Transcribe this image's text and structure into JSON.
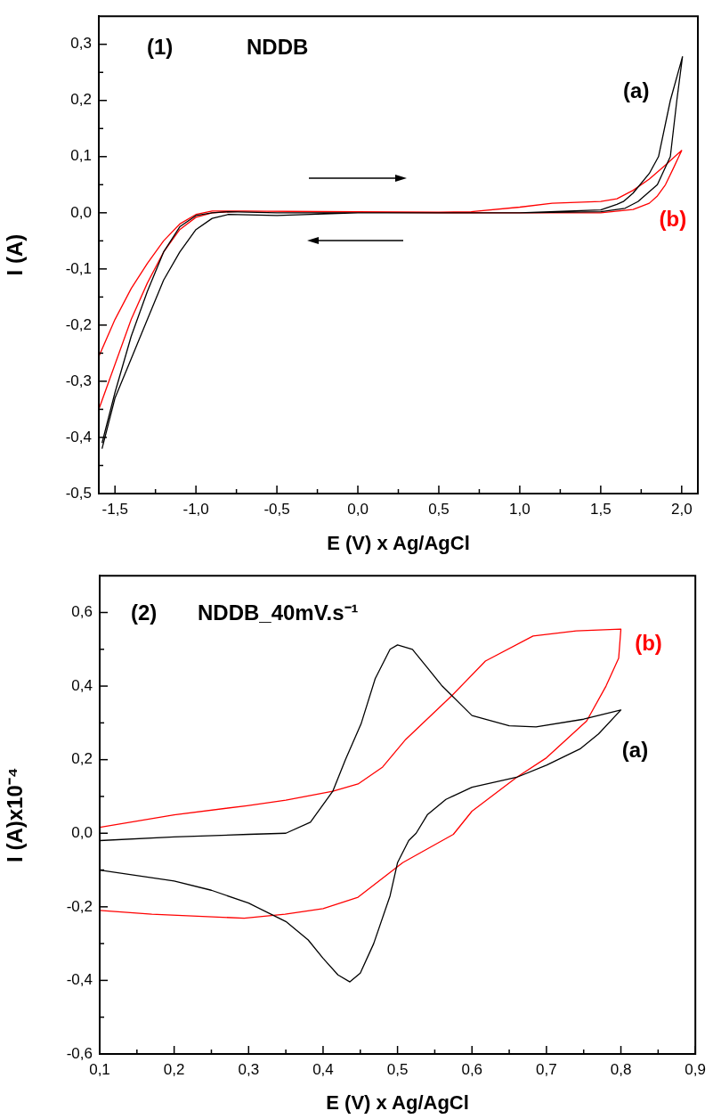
{
  "chart_data": [
    {
      "type": "line",
      "xlabel": "E (V) x Ag/AgCl",
      "ylabel": "I (A)",
      "annotations": [
        "(1)",
        "NDDB"
      ],
      "legend": false,
      "marker": "none",
      "line_style": "solid",
      "xlim": [
        -1.6,
        2.1
      ],
      "ylim": [
        -0.5,
        0.35
      ],
      "xticks": [
        {
          "value": -1.5,
          "label": "-1,5"
        },
        {
          "value": -1.25,
          "label": null
        },
        {
          "value": -1.0,
          "label": "-1,0"
        },
        {
          "value": -0.75,
          "label": null
        },
        {
          "value": -0.5,
          "label": "-0,5"
        },
        {
          "value": -0.25,
          "label": null
        },
        {
          "value": 0,
          "label": "0,0"
        },
        {
          "value": 0.25,
          "label": null
        },
        {
          "value": 0.5,
          "label": "0,5"
        },
        {
          "value": 0.75,
          "label": null
        },
        {
          "value": 1.0,
          "label": "1,0"
        },
        {
          "value": 1.25,
          "label": null
        },
        {
          "value": 1.5,
          "label": "1,5"
        },
        {
          "value": 1.75,
          "label": null
        },
        {
          "value": 2.0,
          "label": "2,0"
        }
      ],
      "yticks": [
        {
          "value": -0.5,
          "label": "-0,5"
        },
        {
          "value": -0.45,
          "label": null
        },
        {
          "value": -0.4,
          "label": "-0,4"
        },
        {
          "value": -0.35,
          "label": null
        },
        {
          "value": -0.3,
          "label": "-0,3"
        },
        {
          "value": -0.25,
          "label": null
        },
        {
          "value": -0.2,
          "label": "-0,2"
        },
        {
          "value": -0.15,
          "label": null
        },
        {
          "value": -0.1,
          "label": "-0,1"
        },
        {
          "value": -0.05,
          "label": null
        },
        {
          "value": 0,
          "label": "0,0"
        },
        {
          "value": 0.05,
          "label": null
        },
        {
          "value": 0.1,
          "label": "0,1"
        },
        {
          "value": 0.15,
          "label": null
        },
        {
          "value": 0.2,
          "label": "0,2"
        },
        {
          "value": 0.25,
          "label": null
        },
        {
          "value": 0.3,
          "label": "0,3"
        }
      ],
      "series": [
        {
          "name": "(a)",
          "color": "#000000",
          "x": [
            -1.58,
            -1.5,
            -1.4,
            -1.3,
            -1.2,
            -1.1,
            -1.0,
            -0.9,
            -0.8,
            -0.5,
            0,
            0.5,
            1.0,
            1.3,
            1.5,
            1.6,
            1.64,
            1.7,
            1.8,
            1.857,
            1.93,
            2.005,
            1.97,
            1.93,
            1.85,
            1.73,
            1.65,
            1.5,
            1.0,
            0.5,
            0,
            -0.5,
            -0.8,
            -0.9,
            -1.0,
            -1.1,
            -1.2,
            -1.3,
            -1.4,
            -1.5,
            -1.58
          ],
          "values": [
            -0.41,
            -0.32,
            -0.22,
            -0.14,
            -0.07,
            -0.025,
            -0.005,
            0.0,
            0.002,
            0.0,
            0.0,
            0.0,
            0.0,
            0.003,
            0.005,
            0.015,
            0.02,
            0.035,
            0.07,
            0.1,
            0.2,
            0.278,
            0.2,
            0.1,
            0.05,
            0.02,
            0.008,
            0.002,
            0.0,
            0.0,
            0.0,
            -0.005,
            -0.003,
            -0.01,
            -0.03,
            -0.07,
            -0.12,
            -0.19,
            -0.26,
            -0.33,
            -0.42
          ]
        },
        {
          "name": "(b)",
          "color": "#ff0000",
          "x": [
            -1.6,
            -1.5,
            -1.4,
            -1.3,
            -1.2,
            -1.1,
            -1.0,
            -0.9,
            -0.7,
            0,
            0.5,
            0.7,
            1.0,
            1.2,
            1.5,
            1.6,
            1.7,
            1.8,
            1.9,
            2.0,
            1.95,
            1.9,
            1.85,
            1.8,
            1.7,
            1.5,
            1.0,
            0.5,
            0,
            -0.7,
            -0.9,
            -1.0,
            -1.1,
            -1.2,
            -1.3,
            -1.4,
            -1.5,
            -1.6
          ],
          "values": [
            -0.35,
            -0.27,
            -0.19,
            -0.125,
            -0.07,
            -0.03,
            -0.008,
            0.0,
            0.003,
            0.002,
            0.001,
            0.002,
            0.01,
            0.017,
            0.02,
            0.025,
            0.04,
            0.06,
            0.085,
            0.111,
            0.08,
            0.05,
            0.03,
            0.017,
            0.006,
            0.0,
            0.0,
            0.0,
            0.001,
            0.003,
            0.003,
            -0.003,
            -0.02,
            -0.05,
            -0.09,
            -0.135,
            -0.19,
            -0.256
          ]
        }
      ]
    },
    {
      "type": "line",
      "xlabel": "E (V) x Ag/AgCl",
      "ylabel": "I (A)x10⁻⁴",
      "annotations": [
        "(2)",
        "NDDB_40mV.s⁻¹"
      ],
      "legend": false,
      "marker": "none",
      "line_style": "solid",
      "xlim": [
        0.1,
        0.9
      ],
      "ylim": [
        -0.6,
        0.7
      ],
      "xticks": [
        {
          "value": 0.1,
          "label": "0,1"
        },
        {
          "value": 0.15,
          "label": null
        },
        {
          "value": 0.2,
          "label": "0,2"
        },
        {
          "value": 0.25,
          "label": null
        },
        {
          "value": 0.3,
          "label": "0,3"
        },
        {
          "value": 0.35,
          "label": null
        },
        {
          "value": 0.4,
          "label": "0,4"
        },
        {
          "value": 0.45,
          "label": null
        },
        {
          "value": 0.5,
          "label": "0,5"
        },
        {
          "value": 0.55,
          "label": null
        },
        {
          "value": 0.6,
          "label": "0,6"
        },
        {
          "value": 0.65,
          "label": null
        },
        {
          "value": 0.7,
          "label": "0,7"
        },
        {
          "value": 0.75,
          "label": null
        },
        {
          "value": 0.8,
          "label": "0,8"
        },
        {
          "value": 0.85,
          "label": null
        },
        {
          "value": 0.9,
          "label": "0,9"
        }
      ],
      "yticks": [
        {
          "value": -0.6,
          "label": "-0,6"
        },
        {
          "value": -0.5,
          "label": null
        },
        {
          "value": -0.4,
          "label": "-0,4"
        },
        {
          "value": -0.3,
          "label": null
        },
        {
          "value": -0.2,
          "label": "-0,2"
        },
        {
          "value": -0.1,
          "label": null
        },
        {
          "value": 0,
          "label": "0,0"
        },
        {
          "value": 0.1,
          "label": null
        },
        {
          "value": 0.2,
          "label": "0,2"
        },
        {
          "value": 0.3,
          "label": null
        },
        {
          "value": 0.4,
          "label": "0,4"
        },
        {
          "value": 0.5,
          "label": null
        },
        {
          "value": 0.6,
          "label": "0,6"
        }
      ],
      "series": [
        {
          "name": "(a)",
          "color": "#000000",
          "x": [
            0.1,
            0.2,
            0.3,
            0.35,
            0.383,
            0.413,
            0.43,
            0.451,
            0.47,
            0.49,
            0.5,
            0.52,
            0.54,
            0.56,
            0.573,
            0.6,
            0.65,
            0.686,
            0.75,
            0.8,
            0.77,
            0.745,
            0.7,
            0.66,
            0.6,
            0.565,
            0.54,
            0.525,
            0.515,
            0.5,
            0.49,
            0.468,
            0.45,
            0.436,
            0.42,
            0.4,
            0.38,
            0.35,
            0.3,
            0.25,
            0.2,
            0.1
          ],
          "values": [
            -0.02,
            -0.01,
            -0.003,
            0.0,
            0.03,
            0.114,
            0.2,
            0.297,
            0.42,
            0.5,
            0.512,
            0.5,
            0.45,
            0.4,
            0.374,
            0.32,
            0.292,
            0.289,
            0.31,
            0.335,
            0.27,
            0.229,
            0.185,
            0.152,
            0.125,
            0.092,
            0.05,
            0.0,
            -0.02,
            -0.08,
            -0.17,
            -0.3,
            -0.38,
            -0.404,
            -0.385,
            -0.34,
            -0.29,
            -0.24,
            -0.19,
            -0.155,
            -0.13,
            -0.1
          ]
        },
        {
          "name": "(b)",
          "color": "#ff0000",
          "x": [
            0.1,
            0.2,
            0.298,
            0.35,
            0.413,
            0.447,
            0.48,
            0.511,
            0.573,
            0.618,
            0.682,
            0.74,
            0.8,
            0.797,
            0.78,
            0.754,
            0.7,
            0.66,
            0.6,
            0.575,
            0.507,
            0.447,
            0.4,
            0.349,
            0.294,
            0.17,
            0.1
          ],
          "values": [
            0.016,
            0.05,
            0.075,
            0.09,
            0.114,
            0.134,
            0.18,
            0.255,
            0.374,
            0.468,
            0.536,
            0.55,
            0.555,
            0.476,
            0.4,
            0.305,
            0.205,
            0.152,
            0.06,
            -0.003,
            -0.08,
            -0.174,
            -0.205,
            -0.22,
            -0.231,
            -0.22,
            -0.21
          ]
        }
      ]
    }
  ]
}
